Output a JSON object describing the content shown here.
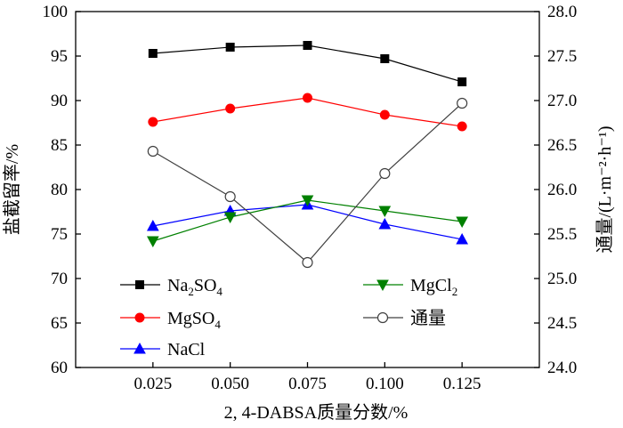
{
  "chart_data": {
    "type": "line",
    "xlabel": "2, 4-DABSA质量分数/%",
    "ylabel": "盐截留率/%",
    "y2label": "通量/(L·m⁻²·h⁻¹)",
    "x": [
      0.025,
      0.05,
      0.075,
      0.1,
      0.125
    ],
    "x_tick_labels": [
      "0.025",
      "0.050",
      "0.075",
      "0.100",
      "0.125"
    ],
    "xlim": [
      0.0,
      0.15
    ],
    "ylim": [
      60,
      100
    ],
    "y_ticks": [
      60,
      65,
      70,
      75,
      80,
      85,
      90,
      95,
      100
    ],
    "y2lim": [
      24.0,
      28.0
    ],
    "y2_tick_labels": [
      "24.0",
      "24.5",
      "25.0",
      "25.5",
      "26.0",
      "26.5",
      "27.0",
      "27.5",
      "28.0"
    ],
    "grid": false,
    "legend_position": "lower-left",
    "series": [
      {
        "name": "Na2SO4",
        "name_base": "Na",
        "name_sub1": "2",
        "name_mid": "SO",
        "name_sub2": "4",
        "axis": "left",
        "marker": "square-filled",
        "color": "#000000",
        "values": [
          95.3,
          96.0,
          96.2,
          94.7,
          92.1
        ]
      },
      {
        "name": "MgSO4",
        "name_base": "MgSO",
        "name_sub1": "4",
        "axis": "left",
        "marker": "circle-filled",
        "color": "#ff0000",
        "values": [
          87.6,
          89.1,
          90.3,
          88.4,
          87.1
        ]
      },
      {
        "name": "NaCl",
        "axis": "left",
        "marker": "triangle-up-filled",
        "color": "#0000ff",
        "values": [
          75.9,
          77.6,
          78.3,
          76.1,
          74.4
        ]
      },
      {
        "name": "MgCl2",
        "name_base": "MgCl",
        "name_sub1": "2",
        "axis": "left",
        "marker": "triangle-down-filled",
        "color": "#008000",
        "values": [
          74.2,
          76.9,
          78.8,
          77.6,
          76.4
        ]
      },
      {
        "name": "通量",
        "axis": "right",
        "marker": "circle-open",
        "color": "#404040",
        "values": [
          26.43,
          25.92,
          25.18,
          26.18,
          26.97
        ]
      }
    ]
  }
}
